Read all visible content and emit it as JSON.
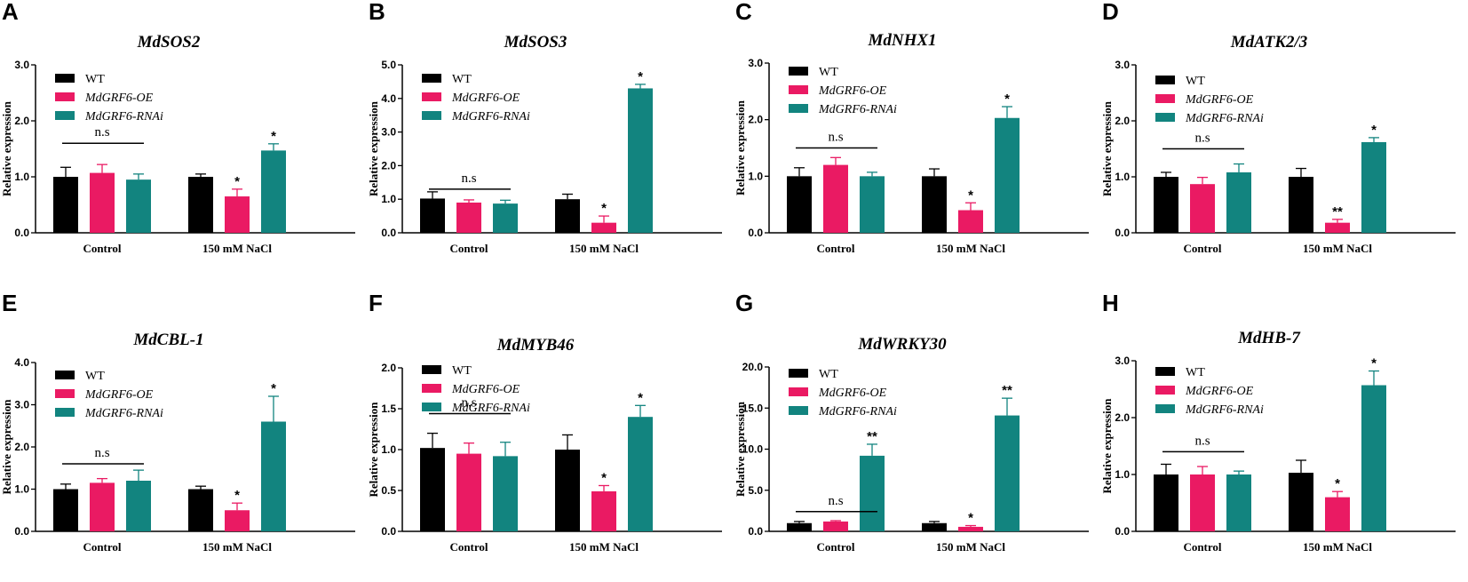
{
  "colors": {
    "WT": "#000000",
    "OE": "#ea1a63",
    "RNAi": "#12847f"
  },
  "legend": [
    "WT",
    "MdGRF6-OE",
    "MdGRF6-RNAi"
  ],
  "ylabel": "Relative expression",
  "ns_label": "n.s",
  "categories": [
    "Control",
    "150 mM NaCl"
  ],
  "chart_data": [
    {
      "panel": "A",
      "type": "bar",
      "title": "MdSOS2",
      "ylabel": "Relative expression",
      "ylim": [
        0,
        3
      ],
      "yticks": [
        "0.0",
        "1.0",
        "2.0",
        "3.0"
      ],
      "categories": [
        "Control",
        "150 mM NaCl"
      ],
      "series": [
        {
          "name": "WT",
          "values": [
            1.0,
            1.0
          ],
          "errors": [
            0.17,
            0.05
          ]
        },
        {
          "name": "MdGRF6-OE",
          "values": [
            1.07,
            0.65
          ],
          "errors": [
            0.15,
            0.13
          ]
        },
        {
          "name": "MdGRF6-RNAi",
          "values": [
            0.95,
            1.47
          ],
          "errors": [
            0.1,
            0.12
          ]
        }
      ],
      "sig": [
        [
          "",
          "",
          ""
        ],
        [
          "",
          "*",
          "*"
        ]
      ]
    },
    {
      "panel": "B",
      "type": "bar",
      "title": "MdSOS3",
      "ylabel": "Relative expression",
      "ylim": [
        0,
        5
      ],
      "yticks": [
        "0.0",
        "1.0",
        "2.0",
        "3.0",
        "4.0",
        "5.0"
      ],
      "categories": [
        "Control",
        "150 mM NaCl"
      ],
      "series": [
        {
          "name": "WT",
          "values": [
            1.02,
            1.0
          ],
          "errors": [
            0.2,
            0.15
          ]
        },
        {
          "name": "MdGRF6-OE",
          "values": [
            0.9,
            0.3
          ],
          "errors": [
            0.08,
            0.2
          ]
        },
        {
          "name": "MdGRF6-RNAi",
          "values": [
            0.87,
            4.3
          ],
          "errors": [
            0.1,
            0.12
          ]
        }
      ],
      "sig": [
        [
          "",
          "",
          ""
        ],
        [
          "",
          "*",
          "*"
        ]
      ]
    },
    {
      "panel": "C",
      "type": "bar",
      "title": "MdNHX1",
      "ylabel": "Relative expression",
      "ylim": [
        0,
        3
      ],
      "yticks": [
        "0.0",
        "1.0",
        "2.0",
        "3.0"
      ],
      "categories": [
        "Control",
        "150 mM NaCl"
      ],
      "series": [
        {
          "name": "WT",
          "values": [
            1.0,
            1.0
          ],
          "errors": [
            0.15,
            0.13
          ]
        },
        {
          "name": "MdGRF6-OE",
          "values": [
            1.2,
            0.4
          ],
          "errors": [
            0.13,
            0.13
          ]
        },
        {
          "name": "MdGRF6-RNAi",
          "values": [
            1.0,
            2.03
          ],
          "errors": [
            0.07,
            0.2
          ]
        }
      ],
      "sig": [
        [
          "",
          "",
          ""
        ],
        [
          "",
          "*",
          "*"
        ]
      ]
    },
    {
      "panel": "D",
      "type": "bar",
      "title": "MdATK2/3",
      "ylabel": "Relative expression",
      "ylim": [
        0,
        3
      ],
      "yticks": [
        "0.0",
        "1.0",
        "2.0",
        "3.0"
      ],
      "categories": [
        "Control",
        "150 mM NaCl"
      ],
      "series": [
        {
          "name": "WT",
          "values": [
            1.0,
            1.0
          ],
          "errors": [
            0.08,
            0.15
          ]
        },
        {
          "name": "MdGRF6-OE",
          "values": [
            0.87,
            0.18
          ],
          "errors": [
            0.12,
            0.06
          ]
        },
        {
          "name": "MdGRF6-RNAi",
          "values": [
            1.08,
            1.62
          ],
          "errors": [
            0.15,
            0.08
          ]
        }
      ],
      "sig": [
        [
          "",
          "",
          ""
        ],
        [
          "",
          "**",
          "*"
        ]
      ]
    },
    {
      "panel": "E",
      "type": "bar",
      "title": "MdCBL-1",
      "ylabel": "Relative expression",
      "ylim": [
        0,
        4
      ],
      "yticks": [
        "0.0",
        "1.0",
        "2.0",
        "3.0",
        "4.0"
      ],
      "categories": [
        "Control",
        "150 mM NaCl"
      ],
      "series": [
        {
          "name": "WT",
          "values": [
            1.0,
            1.0
          ],
          "errors": [
            0.12,
            0.07
          ]
        },
        {
          "name": "MdGRF6-OE",
          "values": [
            1.15,
            0.5
          ],
          "errors": [
            0.1,
            0.17
          ]
        },
        {
          "name": "MdGRF6-RNAi",
          "values": [
            1.2,
            2.6
          ],
          "errors": [
            0.25,
            0.6
          ]
        }
      ],
      "sig": [
        [
          "",
          "",
          ""
        ],
        [
          "",
          "*",
          "*"
        ]
      ]
    },
    {
      "panel": "F",
      "type": "bar",
      "title": "MdMYB46",
      "ylabel": "Relative expression",
      "ylim": [
        0,
        2
      ],
      "yticks": [
        "0.0",
        "0.5",
        "1.0",
        "1.5",
        "2.0"
      ],
      "categories": [
        "Control",
        "150 mM NaCl"
      ],
      "series": [
        {
          "name": "WT",
          "values": [
            1.02,
            1.0
          ],
          "errors": [
            0.18,
            0.18
          ]
        },
        {
          "name": "MdGRF6-OE",
          "values": [
            0.95,
            0.49
          ],
          "errors": [
            0.13,
            0.07
          ]
        },
        {
          "name": "MdGRF6-RNAi",
          "values": [
            0.92,
            1.4
          ],
          "errors": [
            0.17,
            0.14
          ]
        }
      ],
      "sig": [
        [
          "",
          "",
          ""
        ],
        [
          "",
          "*",
          "*"
        ]
      ]
    },
    {
      "panel": "G",
      "type": "bar",
      "title": "MdWRKY30",
      "ylabel": "Relative expression",
      "ylim": [
        0,
        20
      ],
      "yticks": [
        "0.0",
        "5.0",
        "10.0",
        "15.0",
        "20.0"
      ],
      "categories": [
        "Control",
        "150 mM NaCl"
      ],
      "series": [
        {
          "name": "WT",
          "values": [
            1.0,
            1.0
          ],
          "errors": [
            0.2,
            0.2
          ]
        },
        {
          "name": "MdGRF6-OE",
          "values": [
            1.2,
            0.55
          ],
          "errors": [
            0.1,
            0.15
          ]
        },
        {
          "name": "MdGRF6-RNAi",
          "values": [
            9.2,
            14.1
          ],
          "errors": [
            1.4,
            2.1
          ]
        }
      ],
      "sig": [
        [
          "",
          "",
          "**"
        ],
        [
          "",
          "*",
          "**"
        ]
      ]
    },
    {
      "panel": "H",
      "type": "bar",
      "title": "MdHB-7",
      "ylabel": "Relative expression",
      "ylim": [
        0,
        3
      ],
      "yticks": [
        "0.0",
        "1.0",
        "2.0",
        "3.0"
      ],
      "categories": [
        "Control",
        "150 mM NaCl"
      ],
      "series": [
        {
          "name": "WT",
          "values": [
            1.0,
            1.03
          ],
          "errors": [
            0.18,
            0.22
          ]
        },
        {
          "name": "MdGRF6-OE",
          "values": [
            1.0,
            0.6
          ],
          "errors": [
            0.14,
            0.1
          ]
        },
        {
          "name": "MdGRF6-RNAi",
          "values": [
            1.0,
            2.57
          ],
          "errors": [
            0.06,
            0.25
          ]
        }
      ],
      "sig": [
        [
          "",
          "",
          ""
        ],
        [
          "",
          "*",
          "*"
        ]
      ]
    }
  ]
}
